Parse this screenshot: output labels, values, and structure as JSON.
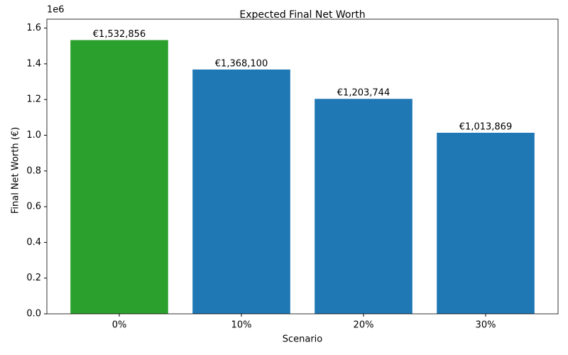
{
  "chart_data": {
    "type": "bar",
    "title": "Expected Final Net Worth",
    "x_label": "Scenario",
    "y_label": "Final Net Worth (€)",
    "y_offset_label": "1e6",
    "categories": [
      "0%",
      "10%",
      "20%",
      "30%"
    ],
    "values": [
      1532856,
      1368100,
      1203744,
      1013869
    ],
    "value_labels": [
      "€1,532,856",
      "€1,368,100",
      "€1,203,744",
      "€1,013,869"
    ],
    "colors": [
      "#2ca02c",
      "#1f77b4",
      "#1f77b4",
      "#1f77b4"
    ],
    "ylim": [
      0,
      1650000
    ],
    "yticks": [
      {
        "value": 0,
        "label": "0.0"
      },
      {
        "value": 200000,
        "label": "0.2"
      },
      {
        "value": 400000,
        "label": "0.4"
      },
      {
        "value": 600000,
        "label": "0.6"
      },
      {
        "value": 800000,
        "label": "0.8"
      },
      {
        "value": 1000000,
        "label": "1.0"
      },
      {
        "value": 1200000,
        "label": "1.2"
      },
      {
        "value": 1400000,
        "label": "1.4"
      },
      {
        "value": 1600000,
        "label": "1.6"
      }
    ],
    "grid": false
  }
}
